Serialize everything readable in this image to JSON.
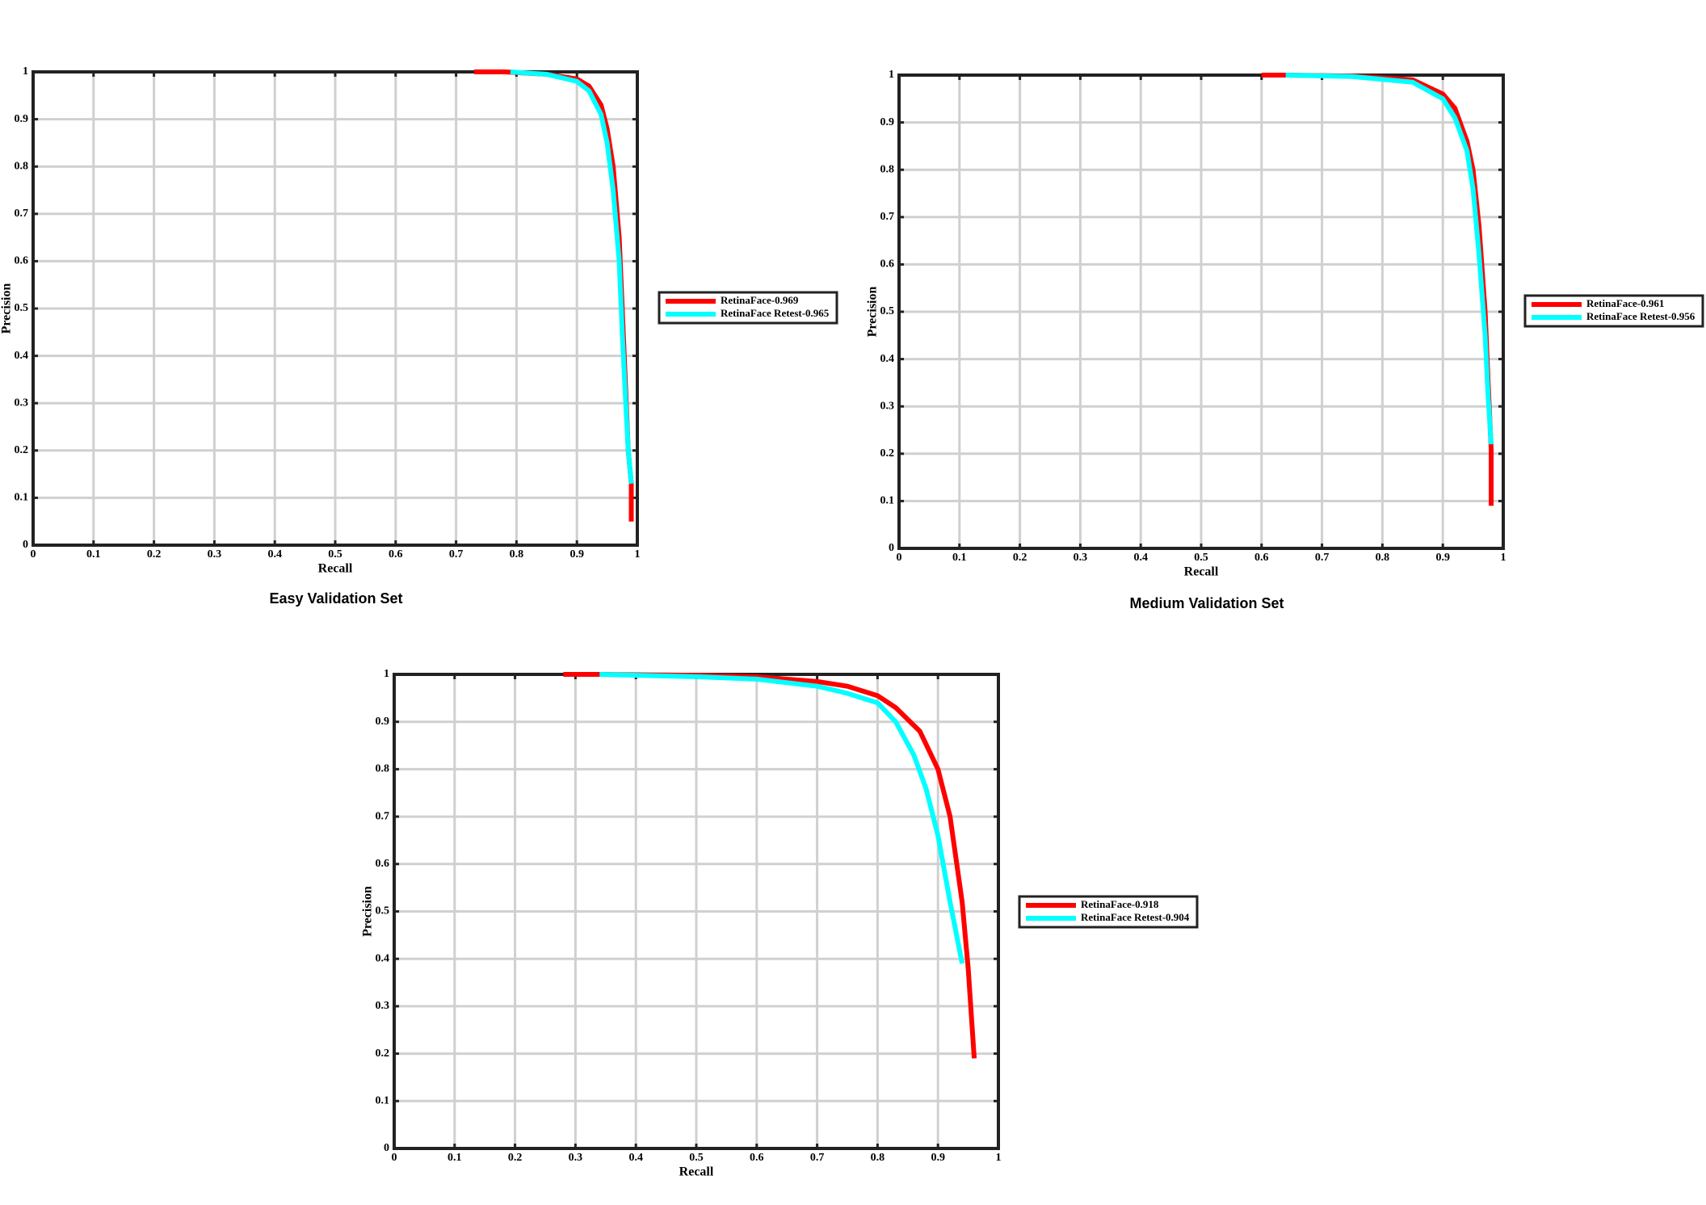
{
  "chart_data": [
    {
      "type": "line",
      "title": "Easy Validation Set",
      "xlabel": "Recall",
      "ylabel": "Precision",
      "xlim": [
        0,
        1
      ],
      "ylim": [
        0,
        1
      ],
      "xticks": [
        0,
        0.1,
        0.2,
        0.3,
        0.4,
        0.5,
        0.6,
        0.7,
        0.8,
        0.9,
        1
      ],
      "yticks": [
        0,
        0.1,
        0.2,
        0.3,
        0.4,
        0.5,
        0.6,
        0.7,
        0.8,
        0.9,
        1
      ],
      "grid": true,
      "series": [
        {
          "name": "RetinaFace-0.969",
          "color": "#ff0000",
          "x": [
            0.73,
            0.78,
            0.85,
            0.9,
            0.92,
            0.94,
            0.95,
            0.96,
            0.97,
            0.975,
            0.98,
            0.985,
            0.99,
            0.99
          ],
          "values": [
            1,
            1,
            0.995,
            0.985,
            0.97,
            0.93,
            0.88,
            0.8,
            0.65,
            0.5,
            0.35,
            0.2,
            0.13,
            0.05
          ]
        },
        {
          "name": "RetinaFace Retest-0.965",
          "color": "#00ffff",
          "x": [
            0.79,
            0.85,
            0.9,
            0.92,
            0.94,
            0.95,
            0.96,
            0.97,
            0.975,
            0.98,
            0.985,
            0.99
          ],
          "values": [
            1,
            0.995,
            0.98,
            0.96,
            0.91,
            0.85,
            0.75,
            0.6,
            0.45,
            0.32,
            0.2,
            0.13
          ]
        }
      ]
    },
    {
      "type": "line",
      "title": "Medium Validation Set",
      "xlabel": "Recall",
      "ylabel": "Precision",
      "xlim": [
        0,
        1
      ],
      "ylim": [
        0,
        1
      ],
      "xticks": [
        0,
        0.1,
        0.2,
        0.3,
        0.4,
        0.5,
        0.6,
        0.7,
        0.8,
        0.9,
        1
      ],
      "yticks": [
        0,
        0.1,
        0.2,
        0.3,
        0.4,
        0.5,
        0.6,
        0.7,
        0.8,
        0.9,
        1
      ],
      "grid": true,
      "series": [
        {
          "name": "RetinaFace-0.961",
          "color": "#ff0000",
          "x": [
            0.6,
            0.64,
            0.75,
            0.85,
            0.9,
            0.92,
            0.94,
            0.95,
            0.96,
            0.97,
            0.975,
            0.98,
            0.98
          ],
          "values": [
            1,
            1,
            0.998,
            0.99,
            0.96,
            0.93,
            0.86,
            0.8,
            0.68,
            0.5,
            0.35,
            0.21,
            0.09
          ]
        },
        {
          "name": "RetinaFace Retest-0.956",
          "color": "#00ffff",
          "x": [
            0.64,
            0.75,
            0.85,
            0.9,
            0.92,
            0.94,
            0.95,
            0.96,
            0.97,
            0.975,
            0.98
          ],
          "values": [
            1,
            0.997,
            0.985,
            0.95,
            0.91,
            0.84,
            0.76,
            0.62,
            0.45,
            0.32,
            0.22
          ]
        }
      ]
    },
    {
      "type": "line",
      "xlabel": "Recall",
      "ylabel": "Precision",
      "xlim": [
        0,
        1
      ],
      "ylim": [
        0,
        1
      ],
      "xticks": [
        0,
        0.1,
        0.2,
        0.3,
        0.4,
        0.5,
        0.6,
        0.7,
        0.8,
        0.9,
        1
      ],
      "yticks": [
        0,
        0.1,
        0.2,
        0.3,
        0.4,
        0.5,
        0.6,
        0.7,
        0.8,
        0.9,
        1
      ],
      "grid": true,
      "series": [
        {
          "name": "RetinaFace-0.918",
          "color": "#ff0000",
          "x": [
            0.28,
            0.34,
            0.5,
            0.6,
            0.7,
            0.75,
            0.8,
            0.83,
            0.87,
            0.9,
            0.92,
            0.94,
            0.95,
            0.96
          ],
          "values": [
            1,
            1,
            0.998,
            0.995,
            0.985,
            0.975,
            0.955,
            0.93,
            0.88,
            0.8,
            0.7,
            0.52,
            0.38,
            0.19
          ]
        },
        {
          "name": "RetinaFace Retest-0.904",
          "color": "#00ffff",
          "x": [
            0.34,
            0.5,
            0.6,
            0.7,
            0.75,
            0.8,
            0.83,
            0.86,
            0.88,
            0.9,
            0.92,
            0.94
          ],
          "values": [
            1,
            0.995,
            0.99,
            0.975,
            0.96,
            0.94,
            0.9,
            0.83,
            0.76,
            0.66,
            0.52,
            0.39
          ]
        }
      ]
    }
  ]
}
